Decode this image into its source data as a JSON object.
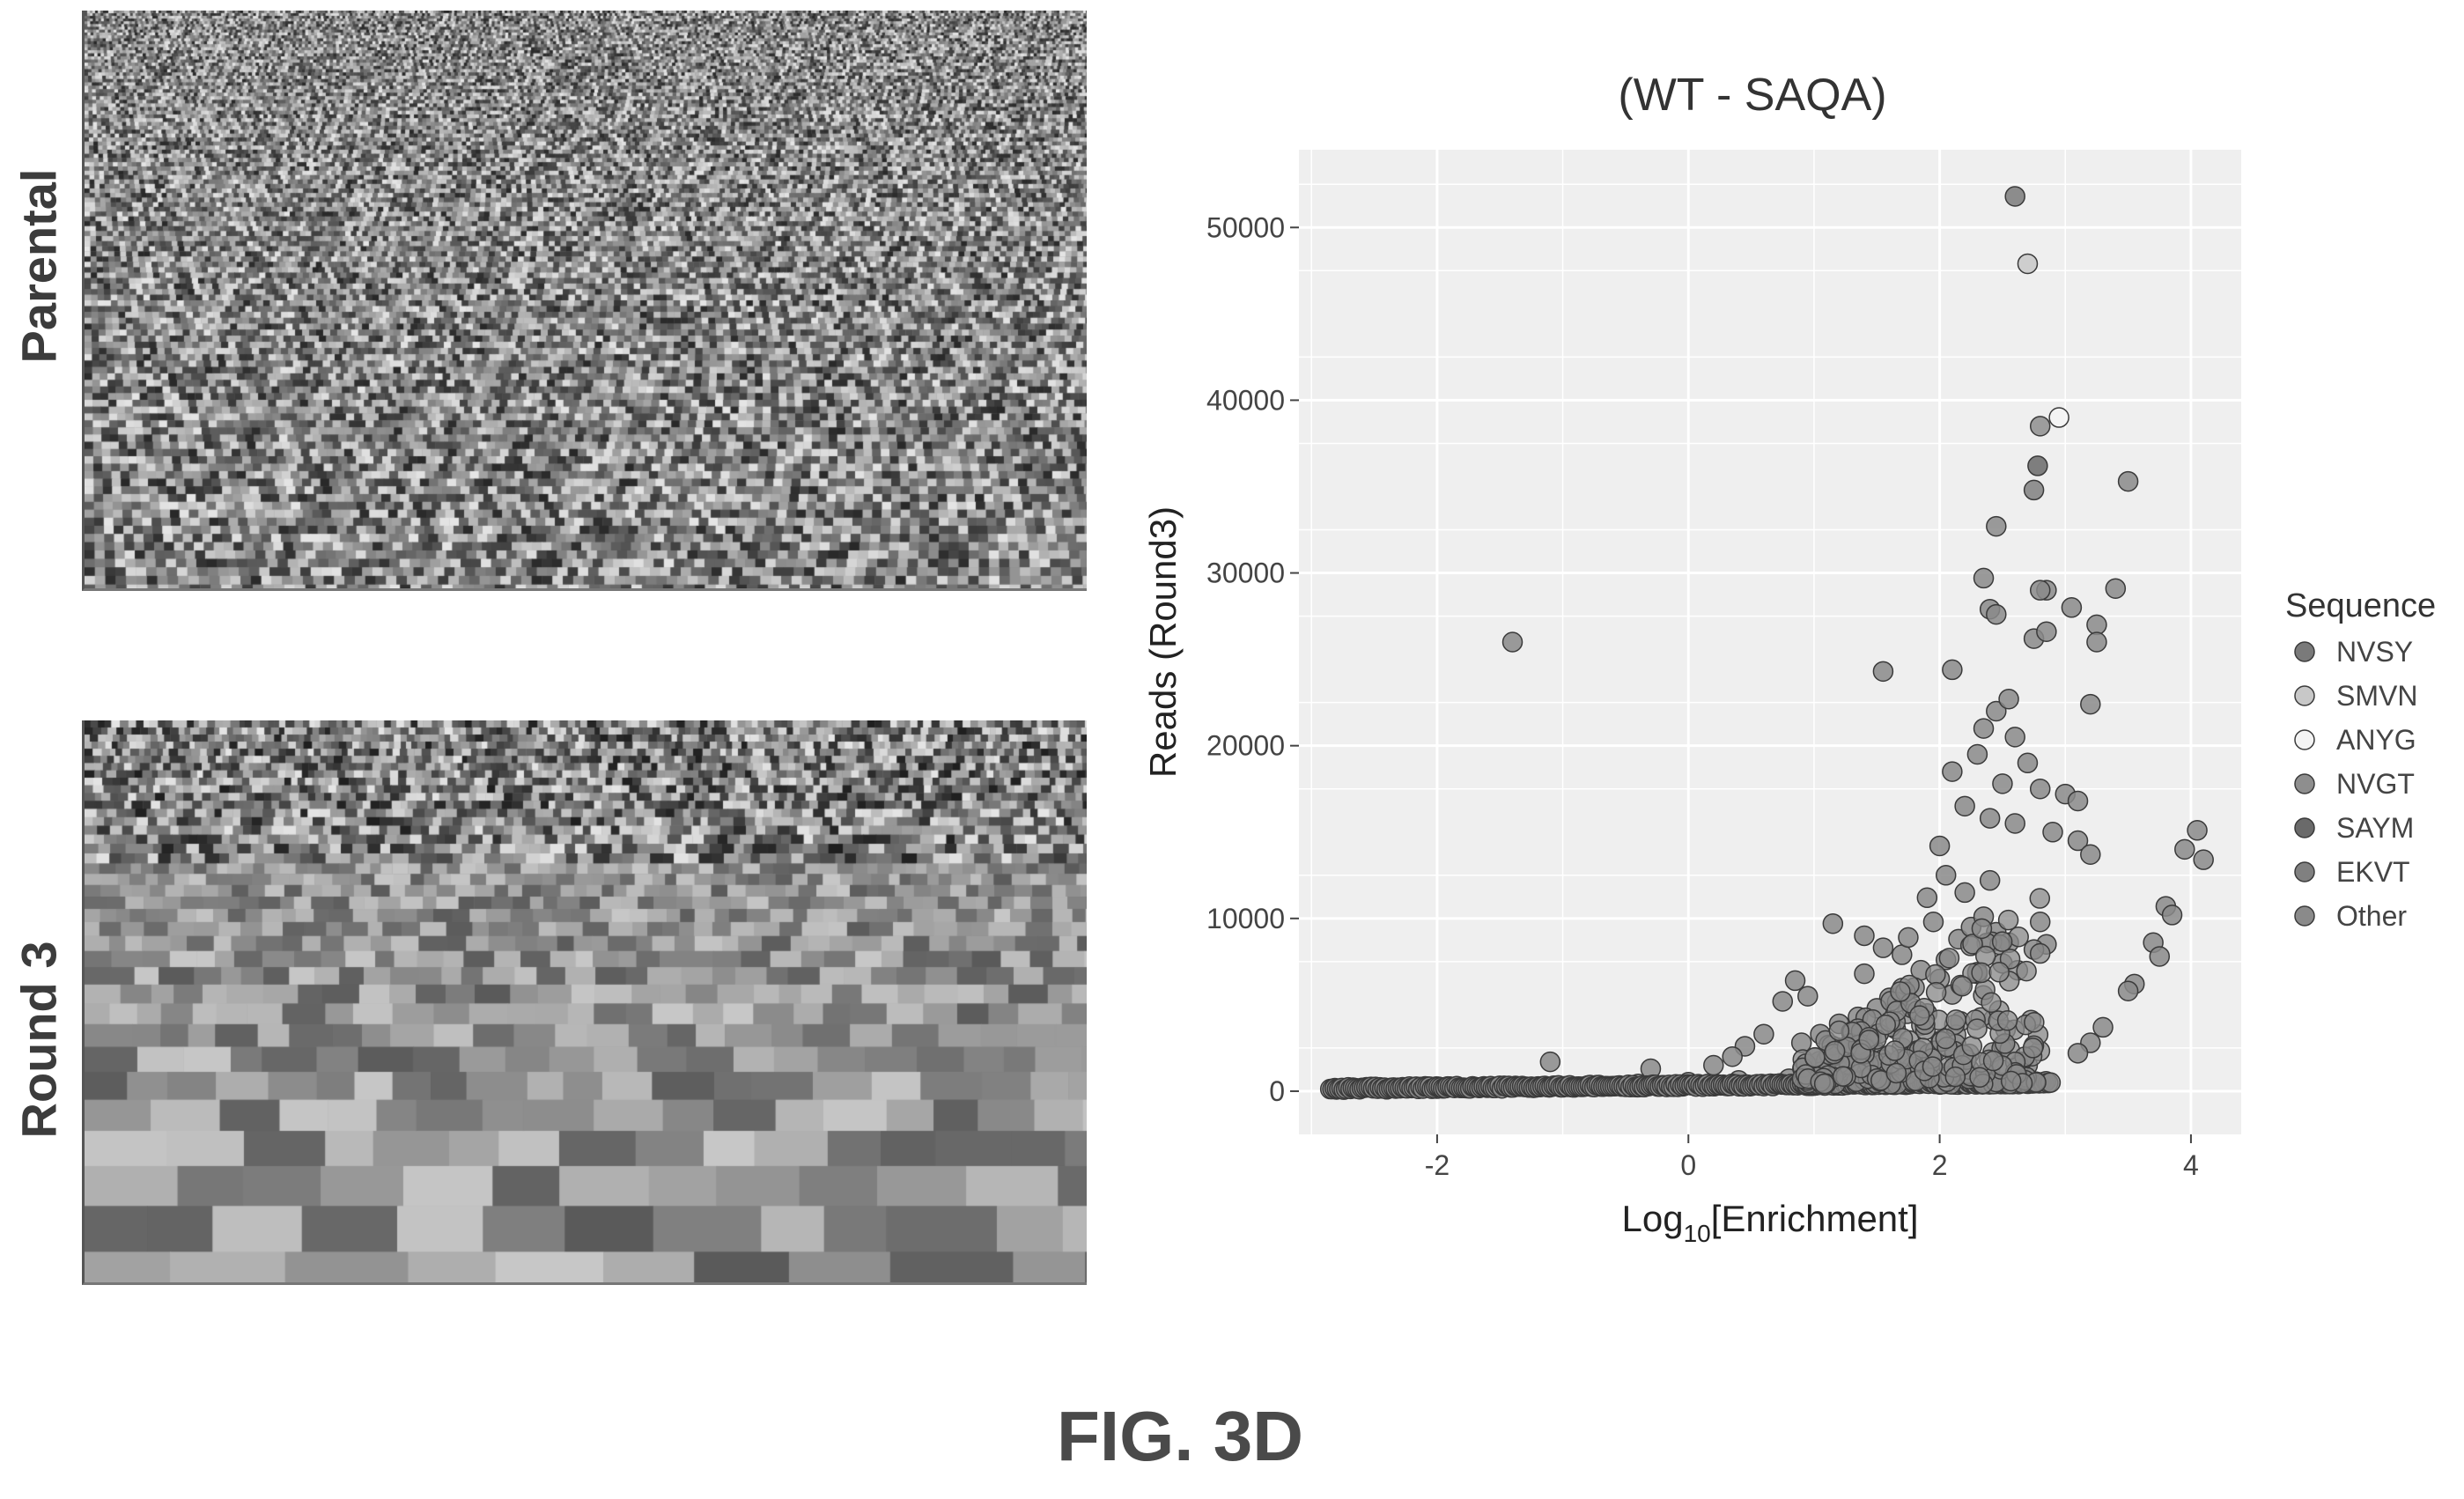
{
  "figure": {
    "caption": "FIG. 3D",
    "panels": {
      "parental_label": "Parental",
      "round3_label": "Round 3"
    }
  },
  "colors": {
    "point_fill": "#8a8a8a",
    "point_stroke": "#3a3a3a",
    "panel_bg": "#efefef",
    "grid": "#ffffff"
  },
  "chart_data": {
    "type": "scatter",
    "title": "(WT - SAQA)",
    "xlabel": "Log10[Enrichment]",
    "xlabel_main": "Log",
    "xlabel_sub": "10",
    "xlabel_rest": "[Enrichment]",
    "ylabel": "Reads (Round3)",
    "xlim": [
      -3.1,
      4.4
    ],
    "ylim": [
      -2500,
      54500
    ],
    "x_ticks": [
      -2,
      0,
      2,
      4
    ],
    "x_tick_labels": [
      "-2",
      "0",
      "2",
      "4"
    ],
    "y_ticks": [
      0,
      10000,
      20000,
      30000,
      40000,
      50000
    ],
    "y_tick_labels": [
      "0",
      "10000",
      "20000",
      "30000",
      "40000",
      "50000"
    ],
    "grid": true,
    "legend_position": "right",
    "legend_title": "Sequence",
    "series": [
      {
        "name": "NVSY",
        "fill": "#7a7a7a",
        "points": [
          [
            2.6,
            51800
          ]
        ]
      },
      {
        "name": "SMVN",
        "fill": "#c8c8c8",
        "points": [
          [
            2.7,
            47900
          ]
        ]
      },
      {
        "name": "ANYG",
        "fill": "#f4f4f4",
        "points": [
          [
            2.95,
            39000
          ]
        ]
      },
      {
        "name": "NVGT",
        "fill": "#8e8e8e",
        "points": [
          [
            2.8,
            38500
          ]
        ]
      },
      {
        "name": "SAYM",
        "fill": "#6a6a6a",
        "points": [
          [
            2.78,
            36200
          ]
        ]
      },
      {
        "name": "EKVT",
        "fill": "#808080",
        "points": [
          [
            2.75,
            34800
          ]
        ]
      },
      {
        "name": "Other",
        "fill": "#8a8a8a",
        "points": [
          [
            -1.4,
            26000
          ],
          [
            3.5,
            35300
          ],
          [
            2.45,
            32700
          ],
          [
            2.85,
            29000
          ],
          [
            2.8,
            29000
          ],
          [
            2.35,
            29700
          ],
          [
            2.4,
            27900
          ],
          [
            2.45,
            27600
          ],
          [
            3.05,
            28000
          ],
          [
            3.4,
            29100
          ],
          [
            3.25,
            27000
          ],
          [
            3.25,
            26000
          ],
          [
            2.75,
            26200
          ],
          [
            2.85,
            26600
          ],
          [
            1.55,
            24300
          ],
          [
            2.1,
            24400
          ],
          [
            2.45,
            22000
          ],
          [
            2.55,
            22700
          ],
          [
            3.2,
            22400
          ],
          [
            2.35,
            21000
          ],
          [
            2.6,
            20500
          ],
          [
            2.3,
            19500
          ],
          [
            2.7,
            19000
          ],
          [
            2.1,
            18500
          ],
          [
            2.5,
            17800
          ],
          [
            2.8,
            17500
          ],
          [
            3.0,
            17200
          ],
          [
            3.1,
            16800
          ],
          [
            2.2,
            16500
          ],
          [
            2.4,
            15800
          ],
          [
            2.6,
            15500
          ],
          [
            2.9,
            15000
          ],
          [
            3.1,
            14500
          ],
          [
            3.2,
            13700
          ],
          [
            2.0,
            14200
          ],
          [
            4.05,
            15100
          ],
          [
            3.95,
            14000
          ],
          [
            4.1,
            13400
          ],
          [
            3.8,
            10700
          ],
          [
            3.85,
            10200
          ],
          [
            3.7,
            8600
          ],
          [
            3.75,
            7800
          ],
          [
            3.55,
            6200
          ],
          [
            3.5,
            5800
          ],
          [
            3.3,
            3700
          ],
          [
            3.2,
            2800
          ],
          [
            3.1,
            2200
          ],
          [
            2.85,
            8500
          ],
          [
            2.75,
            8200
          ],
          [
            2.8,
            9800
          ],
          [
            1.15,
            9700
          ],
          [
            1.4,
            9000
          ],
          [
            1.55,
            8300
          ],
          [
            1.7,
            7900
          ],
          [
            1.85,
            7000
          ],
          [
            2.05,
            7600
          ],
          [
            2.15,
            8800
          ],
          [
            2.25,
            9500
          ],
          [
            2.35,
            10100
          ],
          [
            2.45,
            9200
          ],
          [
            2.55,
            8600
          ],
          [
            1.95,
            9800
          ],
          [
            2.0,
            6500
          ],
          [
            1.8,
            6000
          ],
          [
            1.6,
            5400
          ],
          [
            1.5,
            4800
          ],
          [
            1.35,
            4300
          ],
          [
            1.2,
            3900
          ],
          [
            1.05,
            3300
          ],
          [
            0.9,
            2800
          ],
          [
            1.65,
            3600
          ],
          [
            1.9,
            4500
          ],
          [
            2.1,
            5600
          ],
          [
            2.3,
            6800
          ],
          [
            2.5,
            7400
          ],
          [
            0.85,
            6400
          ],
          [
            0.75,
            5200
          ],
          [
            0.6,
            3300
          ],
          [
            0.45,
            2600
          ],
          [
            0.35,
            2000
          ],
          [
            -1.1,
            1700
          ],
          [
            -0.3,
            1300
          ],
          [
            0.2,
            1500
          ],
          [
            0.95,
            5500
          ],
          [
            1.4,
            6800
          ],
          [
            1.75,
            8900
          ],
          [
            2.2,
            11500
          ],
          [
            2.4,
            12200
          ],
          [
            2.05,
            12500
          ],
          [
            1.9,
            11200
          ],
          [
            -2.8,
            100
          ],
          [
            -2.4,
            120
          ],
          [
            -2.0,
            150
          ],
          [
            -1.6,
            200
          ],
          [
            -1.2,
            260
          ],
          [
            -0.8,
            330
          ],
          [
            -0.4,
            420
          ],
          [
            0.0,
            520
          ],
          [
            0.4,
            620
          ],
          [
            0.8,
            720
          ],
          [
            1.2,
            820
          ],
          [
            1.6,
            930
          ],
          [
            2.0,
            1050
          ],
          [
            2.4,
            1200
          ],
          [
            2.7,
            1500
          ]
        ]
      }
    ]
  }
}
